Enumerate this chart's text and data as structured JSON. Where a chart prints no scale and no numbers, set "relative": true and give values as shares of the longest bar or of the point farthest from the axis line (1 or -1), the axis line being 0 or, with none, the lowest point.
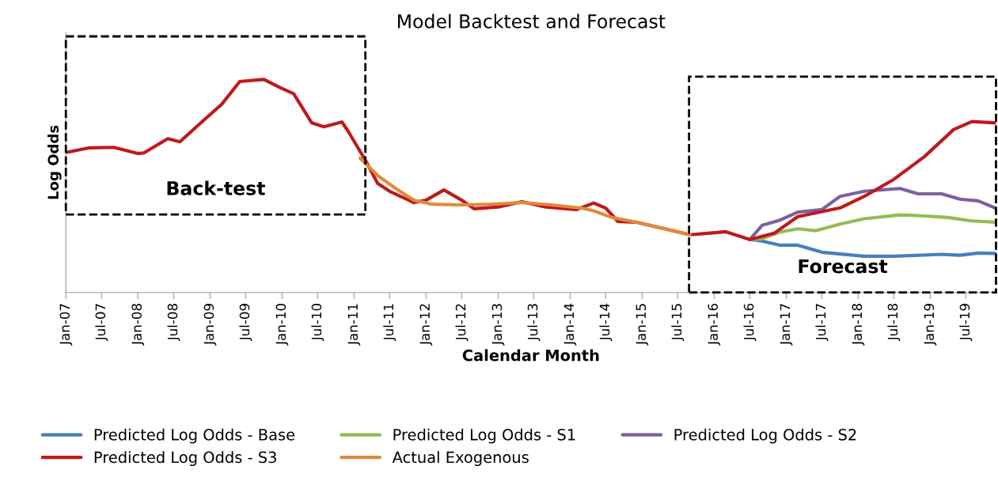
{
  "chart_data": {
    "type": "line",
    "title": "Model Backtest and Forecast",
    "xlabel": "Calendar Month",
    "ylabel": "Log Odds",
    "relative": true,
    "xlim": [
      "2007-01",
      "2019-12"
    ],
    "xticks": [
      {
        "value": "2007-01",
        "label": "Jan-07"
      },
      {
        "value": "2007-07",
        "label": "Jul-07"
      },
      {
        "value": "2008-01",
        "label": "Jan-08"
      },
      {
        "value": "2008-07",
        "label": "Jul-08"
      },
      {
        "value": "2009-01",
        "label": "Jan-09"
      },
      {
        "value": "2009-07",
        "label": "Jul-09"
      },
      {
        "value": "2010-01",
        "label": "Jan-10"
      },
      {
        "value": "2010-07",
        "label": "Jul-10"
      },
      {
        "value": "2011-01",
        "label": "Jan-11"
      },
      {
        "value": "2011-07",
        "label": "Jul-11"
      },
      {
        "value": "2012-01",
        "label": "Jan-12"
      },
      {
        "value": "2012-07",
        "label": "Jul-12"
      },
      {
        "value": "2013-01",
        "label": "Jan-13"
      },
      {
        "value": "2013-07",
        "label": "Jul-13"
      },
      {
        "value": "2014-01",
        "label": "Jan-14"
      },
      {
        "value": "2014-07",
        "label": "Jul-14"
      },
      {
        "value": "2015-01",
        "label": "Jan-15"
      },
      {
        "value": "2015-07",
        "label": "Jul-15"
      },
      {
        "value": "2016-01",
        "label": "Jan-16"
      },
      {
        "value": "2016-07",
        "label": "Jul-16"
      },
      {
        "value": "2017-01",
        "label": "Jan-17"
      },
      {
        "value": "2017-07",
        "label": "Jul-17"
      },
      {
        "value": "2018-01",
        "label": "Jan-18"
      },
      {
        "value": "2018-07",
        "label": "Jul-18"
      },
      {
        "value": "2019-01",
        "label": "Jan-19"
      },
      {
        "value": "2019-07",
        "label": "Jul-19"
      }
    ],
    "series": [
      {
        "name": "Predicted Log Odds - Base",
        "color": "#4a7ebb",
        "x": [
          "2016-07",
          "2016-09",
          "2016-12",
          "2017-03",
          "2017-07",
          "2018-02",
          "2018-07",
          "2019-03",
          "2019-06",
          "2019-09",
          "2019-12"
        ],
        "values": [
          0.249,
          0.241,
          0.222,
          0.222,
          0.189,
          0.17,
          0.17,
          0.179,
          0.175,
          0.185,
          0.183
        ]
      },
      {
        "name": "Predicted Log Odds - S1",
        "color": "#98b954",
        "x": [
          "2016-07",
          "2016-09",
          "2016-12",
          "2017-03",
          "2017-06",
          "2017-10",
          "2018-02",
          "2018-08",
          "2018-11",
          "2019-04",
          "2019-08",
          "2019-12"
        ],
        "values": [
          0.249,
          0.253,
          0.284,
          0.299,
          0.29,
          0.321,
          0.346,
          0.364,
          0.361,
          0.352,
          0.336,
          0.33
        ]
      },
      {
        "name": "Predicted Log Odds - S2",
        "color": "#7d60a0",
        "x": [
          "2016-07",
          "2016-09",
          "2016-12",
          "2017-03",
          "2017-07",
          "2017-10",
          "2018-02",
          "2018-08",
          "2018-11",
          "2019-03",
          "2019-06",
          "2019-09",
          "2019-12"
        ],
        "values": [
          0.249,
          0.315,
          0.34,
          0.377,
          0.389,
          0.451,
          0.475,
          0.488,
          0.463,
          0.463,
          0.438,
          0.43,
          0.395
        ]
      },
      {
        "name": "Predicted Log Odds - S3",
        "color": "#be1a1a",
        "x": [
          "2007-01",
          "2007-05",
          "2007-09",
          "2008-01",
          "2008-02",
          "2008-06",
          "2008-08",
          "2008-12",
          "2009-03",
          "2009-06",
          "2009-10",
          "2010-01",
          "2010-03",
          "2010-06",
          "2010-08",
          "2010-11",
          "2010-12",
          "2011-03",
          "2011-05",
          "2011-07",
          "2011-11",
          "2012-01",
          "2012-04",
          "2012-07",
          "2012-09",
          "2013-01",
          "2013-05",
          "2013-09",
          "2014-02",
          "2014-05",
          "2014-07",
          "2014-09",
          "2014-12",
          "2015-04",
          "2015-09",
          "2015-12",
          "2016-03",
          "2016-07",
          "2016-11",
          "2017-03",
          "2017-10",
          "2018-02",
          "2018-07",
          "2018-12",
          "2019-05",
          "2019-08",
          "2019-12"
        ],
        "values": [
          0.657,
          0.679,
          0.681,
          0.652,
          0.655,
          0.722,
          0.707,
          0.809,
          0.883,
          0.99,
          1.0,
          0.957,
          0.933,
          0.796,
          0.778,
          0.8,
          0.759,
          0.619,
          0.512,
          0.475,
          0.422,
          0.433,
          0.481,
          0.433,
          0.393,
          0.401,
          0.426,
          0.401,
          0.389,
          0.42,
          0.396,
          0.333,
          0.33,
          0.304,
          0.271,
          0.278,
          0.285,
          0.249,
          0.278,
          0.356,
          0.397,
          0.451,
          0.531,
          0.636,
          0.765,
          0.802,
          0.796
        ]
      },
      {
        "name": "Actual Exogenous",
        "color": "#e08a3c",
        "x": [
          "2011-02",
          "2011-05",
          "2011-08",
          "2011-11",
          "2012-02",
          "2012-07",
          "2012-12",
          "2013-05",
          "2013-10",
          "2014-03",
          "2014-05",
          "2014-08",
          "2014-12",
          "2015-04",
          "2015-09"
        ],
        "values": [
          0.63,
          0.549,
          0.488,
          0.433,
          0.414,
          0.411,
          0.414,
          0.422,
          0.411,
          0.396,
          0.383,
          0.352,
          0.33,
          0.304,
          0.271
        ]
      }
    ],
    "annotations": [
      "Back-test",
      "Forecast"
    ],
    "legend": "bottom",
    "grid": false
  }
}
